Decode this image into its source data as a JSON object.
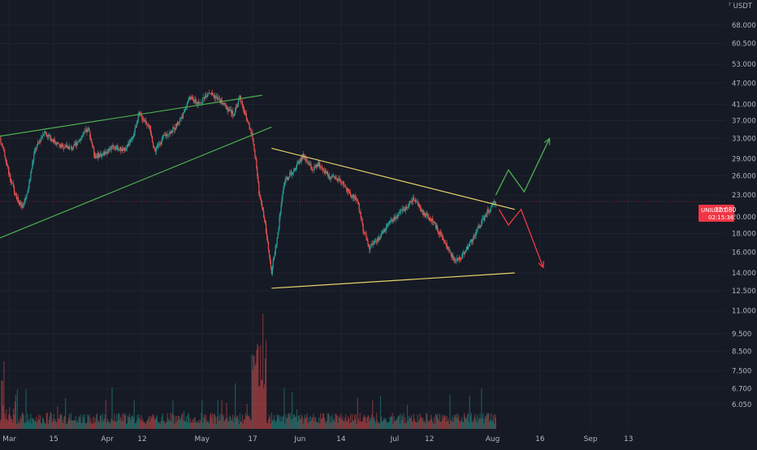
{
  "chart_data": {
    "type": "candlestick",
    "symbol": "UNIUSDT",
    "quote_currency": "USDT",
    "price_scale": "log",
    "grid": true,
    "last_price": "22.080",
    "countdown": "02:15:36",
    "y_ticks": [
      "68.000",
      "60.500",
      "53.000",
      "47.000",
      "41.000",
      "37.000",
      "33.000",
      "29.000",
      "26.000",
      "23.000",
      "20.000",
      "18.000",
      "16.000",
      "14.000",
      "12.500",
      "11.000",
      "9.500",
      "8.500",
      "7.500",
      "6.700",
      "6.050"
    ],
    "y_tick_values": [
      68,
      60.5,
      53,
      47,
      41,
      37,
      33,
      29,
      26,
      23,
      20,
      18,
      16,
      14,
      12.5,
      11,
      9.5,
      8.5,
      7.5,
      6.7,
      6.05
    ],
    "x_ticks": [
      "Mar",
      "15",
      "Apr",
      "12",
      "May",
      "17",
      "Jun",
      "14",
      "Jul",
      "12",
      "Aug",
      "16",
      "Sep",
      "13"
    ],
    "price_path": [
      [
        "Feb 26",
        33.0
      ],
      [
        "Mar 1",
        26.0
      ],
      [
        "Mar 3",
        23.0
      ],
      [
        "Mar 5",
        21.0
      ],
      [
        "Mar 7",
        24.0
      ],
      [
        "Mar 9",
        30.5
      ],
      [
        "Mar 12",
        34.5
      ],
      [
        "Mar 14",
        33.0
      ],
      [
        "Mar 17",
        31.5
      ],
      [
        "Mar 21",
        31.0
      ],
      [
        "Mar 24",
        33.5
      ],
      [
        "Mar 26",
        35.0
      ],
      [
        "Mar 28",
        29.5
      ],
      [
        "Mar 31",
        30.0
      ],
      [
        "Apr 3",
        31.5
      ],
      [
        "Apr 6",
        30.5
      ],
      [
        "Apr 9",
        33.0
      ],
      [
        "Apr 11",
        38.5
      ],
      [
        "Apr 14",
        36.0
      ],
      [
        "Apr 16",
        30.5
      ],
      [
        "Apr 19",
        33.5
      ],
      [
        "Apr 22",
        35.0
      ],
      [
        "Apr 25",
        38.5
      ],
      [
        "Apr 27",
        43.0
      ],
      [
        "Apr 30",
        41.0
      ],
      [
        "May 3",
        44.5
      ],
      [
        "May 6",
        42.5
      ],
      [
        "May 9",
        40.0
      ],
      [
        "May 11",
        38.5
      ],
      [
        "May 13",
        43.0
      ],
      [
        "May 15",
        37.5
      ],
      [
        "May 17",
        33.5
      ],
      [
        "May 19",
        23.5
      ],
      [
        "May 21",
        19.0
      ],
      [
        "May 23",
        14.0
      ],
      [
        "May 25",
        18.0
      ],
      [
        "May 27",
        25.0
      ],
      [
        "May 30",
        27.0
      ],
      [
        "Jun 2",
        29.5
      ],
      [
        "Jun 5",
        27.0
      ],
      [
        "Jun 7",
        28.0
      ],
      [
        "Jun 10",
        26.0
      ],
      [
        "Jun 14",
        25.0
      ],
      [
        "Jun 17",
        23.0
      ],
      [
        "Jun 19",
        22.5
      ],
      [
        "Jun 21",
        18.5
      ],
      [
        "Jun 23",
        16.5
      ],
      [
        "Jun 26",
        17.5
      ],
      [
        "Jun 30",
        19.5
      ],
      [
        "Jul 4",
        21.0
      ],
      [
        "Jul 7",
        22.5
      ],
      [
        "Jul 10",
        20.5
      ],
      [
        "Jul 13",
        19.5
      ],
      [
        "Jul 16",
        17.5
      ],
      [
        "Jul 20",
        15.0
      ],
      [
        "Jul 22",
        15.5
      ],
      [
        "Jul 25",
        17.0
      ],
      [
        "Jul 28",
        19.0
      ],
      [
        "Jul 31",
        21.0
      ],
      [
        "Aug 2",
        22.08
      ]
    ],
    "volume": "histogram",
    "trendlines": [
      {
        "name": "rising-wedge-upper",
        "color": "#4caf50",
        "from": [
          "Feb 26",
          33.5
        ],
        "to": [
          "May 20",
          43.5
        ]
      },
      {
        "name": "rising-wedge-lower",
        "color": "#4caf50",
        "from": [
          "Feb 26",
          17.5
        ],
        "to": [
          "May 23",
          35.5
        ]
      },
      {
        "name": "triangle-upper",
        "color": "#e6d36a",
        "from": [
          "May 23",
          31.0
        ],
        "to": [
          "Aug 8",
          21.0
        ]
      },
      {
        "name": "triangle-lower",
        "color": "#e6d36a",
        "from": [
          "May 23",
          12.7
        ],
        "to": [
          "Aug 8",
          14.0
        ]
      }
    ],
    "projections": [
      {
        "name": "bullish-path",
        "color": "#4caf50",
        "points": [
          [
            "Aug 2",
            23.0
          ],
          [
            "Aug 6",
            27.0
          ],
          [
            "Aug 11",
            23.5
          ],
          [
            "Aug 19",
            33.0
          ]
        ]
      },
      {
        "name": "bearish-path",
        "color": "#f23645",
        "points": [
          [
            "Aug 3",
            21.0
          ],
          [
            "Aug 6",
            19.0
          ],
          [
            "Aug 10",
            21.0
          ],
          [
            "Aug 17",
            14.5
          ]
        ]
      }
    ]
  },
  "colors": {
    "background": "#161a25",
    "grid": "#1f232e",
    "candle_up": "#26a69a",
    "candle_down": "#ef5350",
    "price_line": "#f23645",
    "axis_text": "#b2b5be"
  }
}
